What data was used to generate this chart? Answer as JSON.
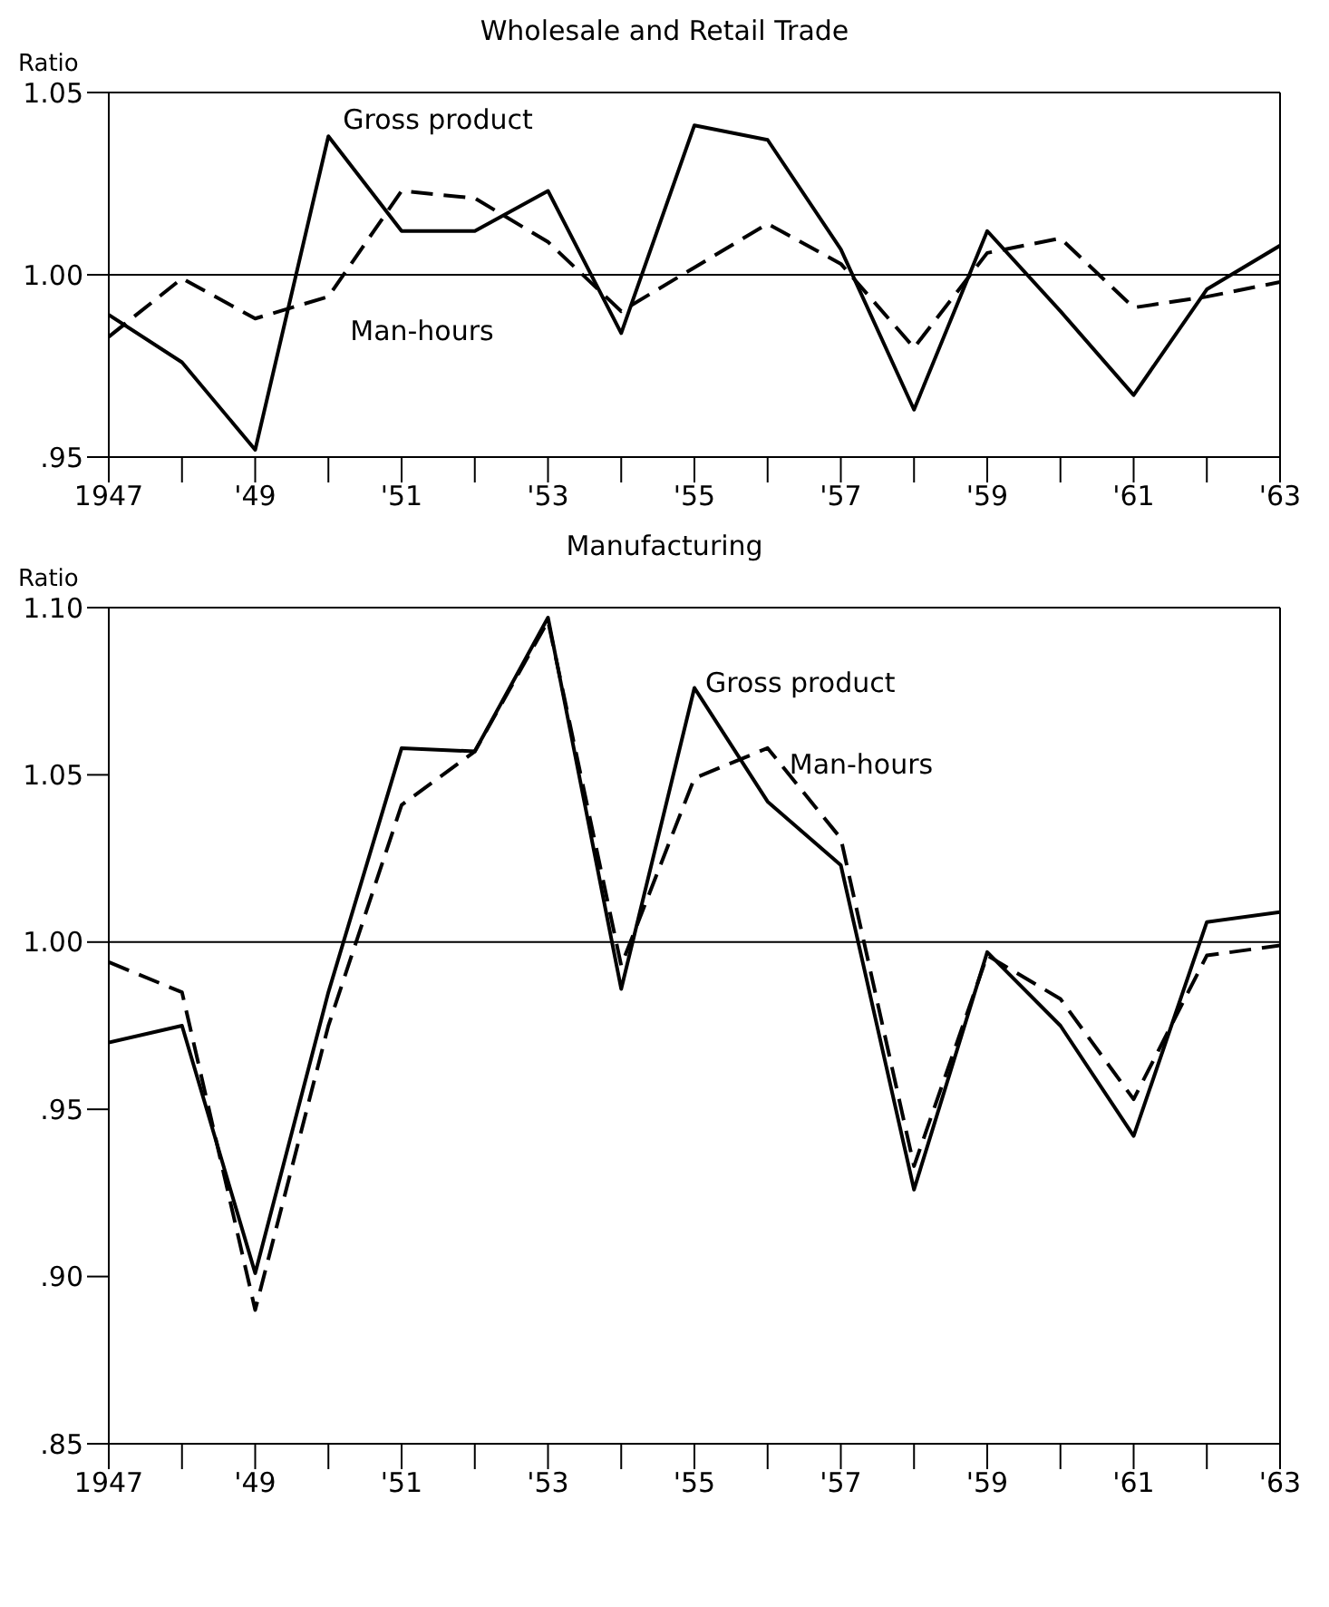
{
  "chart_data": [
    {
      "type": "line",
      "title": "Wholesale and Retail Trade",
      "ylabel": "Ratio",
      "x": [
        1947,
        1948,
        1949,
        1950,
        1951,
        1952,
        1953,
        1954,
        1955,
        1956,
        1957,
        1958,
        1959,
        1960,
        1961,
        1962,
        1963
      ],
      "series": [
        {
          "name": "Gross product",
          "color": "#000000",
          "line_style": "solid",
          "values": [
            0.989,
            0.976,
            0.952,
            1.038,
            1.012,
            1.012,
            1.023,
            0.984,
            1.041,
            1.037,
            1.007,
            0.963,
            1.012,
            0.99,
            0.967,
            0.996,
            1.008
          ]
        },
        {
          "name": "Man-hours",
          "color": "#000000",
          "line_style": "dashed",
          "values": [
            0.983,
            0.999,
            0.988,
            0.994,
            1.023,
            1.021,
            1.009,
            0.99,
            1.002,
            1.014,
            1.003,
            0.98,
            1.006,
            1.01,
            0.991,
            0.994,
            0.998
          ]
        }
      ],
      "xlim": [
        1947,
        1963
      ],
      "xticks": [
        {
          "value": 1947,
          "label": "1947"
        },
        {
          "value": 1948,
          "label": null
        },
        {
          "value": 1949,
          "label": "'49"
        },
        {
          "value": 1950,
          "label": null
        },
        {
          "value": 1951,
          "label": "'51"
        },
        {
          "value": 1952,
          "label": null
        },
        {
          "value": 1953,
          "label": "'53"
        },
        {
          "value": 1954,
          "label": null
        },
        {
          "value": 1955,
          "label": "'55"
        },
        {
          "value": 1956,
          "label": null
        },
        {
          "value": 1957,
          "label": "'57"
        },
        {
          "value": 1958,
          "label": null
        },
        {
          "value": 1959,
          "label": "'59"
        },
        {
          "value": 1960,
          "label": null
        },
        {
          "value": 1961,
          "label": "'61"
        },
        {
          "value": 1962,
          "label": null
        },
        {
          "value": 1963,
          "label": "'63"
        }
      ],
      "ylim": [
        0.95,
        1.05
      ],
      "yticks": [
        {
          "value": 0.95,
          "label": ".95"
        },
        {
          "value": 1.0,
          "label": "1.00"
        },
        {
          "value": 1.05,
          "label": "1.05"
        }
      ],
      "ref_lines": [
        {
          "axis": "y",
          "value": 1.0,
          "label": null
        }
      ],
      "marker": "none",
      "grid": false,
      "legend": false
    },
    {
      "type": "line",
      "title": "Manufacturing",
      "ylabel": "Ratio",
      "x": [
        1947,
        1948,
        1949,
        1950,
        1951,
        1952,
        1953,
        1954,
        1955,
        1956,
        1957,
        1958,
        1959,
        1960,
        1961,
        1962,
        1963
      ],
      "series": [
        {
          "name": "Gross product",
          "color": "#000000",
          "line_style": "solid",
          "values": [
            0.97,
            0.975,
            0.901,
            0.985,
            1.058,
            1.057,
            1.097,
            0.986,
            1.076,
            1.042,
            1.023,
            0.926,
            0.997,
            0.975,
            0.942,
            1.006,
            1.009
          ]
        },
        {
          "name": "Man-hours",
          "color": "#000000",
          "line_style": "dashed",
          "values": [
            0.994,
            0.985,
            0.89,
            0.975,
            1.041,
            1.057,
            1.096,
            0.993,
            1.049,
            1.058,
            1.031,
            0.933,
            0.996,
            0.983,
            0.953,
            0.996,
            0.999
          ]
        }
      ],
      "xlim": [
        1947,
        1963
      ],
      "xticks": [
        {
          "value": 1947,
          "label": "1947"
        },
        {
          "value": 1948,
          "label": null
        },
        {
          "value": 1949,
          "label": "'49"
        },
        {
          "value": 1950,
          "label": null
        },
        {
          "value": 1951,
          "label": "'51"
        },
        {
          "value": 1952,
          "label": null
        },
        {
          "value": 1953,
          "label": "'53"
        },
        {
          "value": 1954,
          "label": null
        },
        {
          "value": 1955,
          "label": "'55"
        },
        {
          "value": 1956,
          "label": null
        },
        {
          "value": 1957,
          "label": "'57"
        },
        {
          "value": 1958,
          "label": null
        },
        {
          "value": 1959,
          "label": "'59"
        },
        {
          "value": 1960,
          "label": null
        },
        {
          "value": 1961,
          "label": "'61"
        },
        {
          "value": 1962,
          "label": null
        },
        {
          "value": 1963,
          "label": "'63"
        }
      ],
      "ylim": [
        0.85,
        1.1
      ],
      "yticks": [
        {
          "value": 0.85,
          "label": ".85"
        },
        {
          "value": 0.9,
          "label": ".90"
        },
        {
          "value": 0.95,
          "label": ".95"
        },
        {
          "value": 1.0,
          "label": "1.00"
        },
        {
          "value": 1.05,
          "label": "1.05"
        },
        {
          "value": 1.1,
          "label": "1.10"
        }
      ],
      "ref_lines": [
        {
          "axis": "y",
          "value": 1.0,
          "label": null
        }
      ],
      "marker": "none",
      "grid": false,
      "legend": false
    }
  ]
}
